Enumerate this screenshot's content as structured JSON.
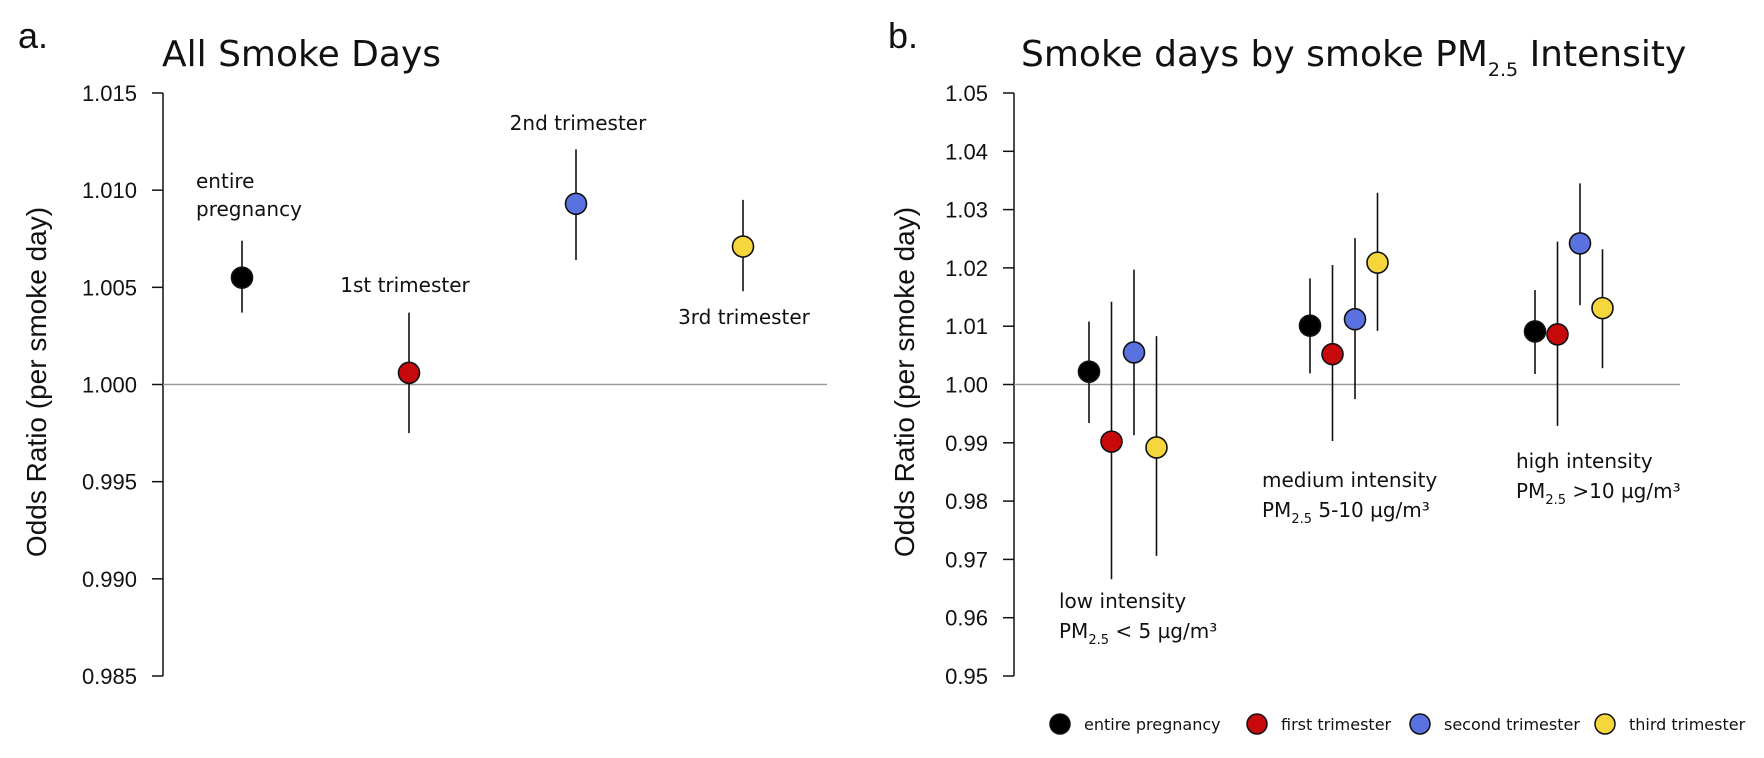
{
  "colors": {
    "entire": "#000000",
    "first": "#c8090c",
    "second": "#5a72e0",
    "third": "#f5d63c",
    "reference_line": "#9a9a9a",
    "axis": "#111111"
  },
  "panel_a": {
    "letter": "a.",
    "title": "All Smoke Days",
    "ylabel": "Odds Ratio (per smoke day)",
    "annotations": {
      "entire_1": "entire",
      "entire_2": "pregnancy",
      "first": "1st trimester",
      "second": "2nd trimester",
      "third": "3rd trimester"
    }
  },
  "panel_b": {
    "letter": "b.",
    "title_main": "Smoke days by smoke PM",
    "title_sub": "2.5",
    "title_tail": " Intensity",
    "ylabel": "Odds Ratio (per smoke day)",
    "groups": {
      "low_line1": "low intensity",
      "low_pm": "PM",
      "low_sub": "2.5",
      "low_rest": " < 5 µg/m³",
      "medium_line1": "medium intensity",
      "medium_pm": "PM",
      "medium_sub": "2.5",
      "medium_rest": " 5-10 µg/m³",
      "high_line1": "high intensity",
      "high_pm": "PM",
      "high_sub": "2.5",
      "high_rest": " >10 µg/m³"
    }
  },
  "legend": {
    "entire": "entire pregnancy",
    "first": "first trimester",
    "second": "second trimester",
    "third": "third trimester"
  },
  "chart_data": [
    {
      "type": "scatter",
      "title": "All Smoke Days",
      "ylabel": "Odds Ratio (per smoke day)",
      "ylim": [
        0.985,
        1.015
      ],
      "yticks": [
        "0.985",
        "0.990",
        "0.995",
        "1.000",
        "1.005",
        "1.010",
        "1.015"
      ],
      "reference_line": 1.0,
      "points": [
        {
          "series": "entire pregnancy",
          "label": "entire pregnancy",
          "or": 1.0055,
          "lo": 1.0037,
          "hi": 1.0074
        },
        {
          "series": "first trimester",
          "label": "1st trimester",
          "or": 1.0006,
          "lo": 0.9975,
          "hi": 1.0037
        },
        {
          "series": "second trimester",
          "label": "2nd trimester",
          "or": 1.0093,
          "lo": 1.0064,
          "hi": 1.0121
        },
        {
          "series": "third trimester",
          "label": "3rd trimester",
          "or": 1.0071,
          "lo": 1.0048,
          "hi": 1.0095
        }
      ]
    },
    {
      "type": "scatter",
      "title": "Smoke days by smoke PM2.5 Intensity",
      "ylabel": "Odds Ratio (per smoke day)",
      "ylim": [
        0.95,
        1.05
      ],
      "yticks": [
        "0.95",
        "0.96",
        "0.97",
        "0.98",
        "0.99",
        "1.00",
        "1.01",
        "1.02",
        "1.03",
        "1.04",
        "1.05"
      ],
      "reference_line": 1.0,
      "categories": [
        "low intensity",
        "medium intensity",
        "high intensity"
      ],
      "series": [
        {
          "name": "entire pregnancy",
          "or": [
            1.0022,
            1.0101,
            1.0091
          ],
          "lo": [
            0.9934,
            1.0019,
            1.0018
          ],
          "hi": [
            1.0108,
            1.0182,
            1.0162
          ]
        },
        {
          "name": "first trimester",
          "or": [
            0.9902,
            1.0052,
            1.0086
          ],
          "lo": [
            0.9666,
            0.9903,
            0.9929
          ],
          "hi": [
            1.0142,
            1.0205,
            1.0245
          ]
        },
        {
          "name": "second trimester",
          "or": [
            1.0055,
            1.0112,
            1.0242
          ],
          "lo": [
            0.9913,
            0.9975,
            1.0136
          ],
          "hi": [
            1.0197,
            1.0251,
            1.0345
          ]
        },
        {
          "name": "third trimester",
          "or": [
            0.9892,
            1.0209,
            1.0131
          ],
          "lo": [
            0.9706,
            1.0092,
            1.0028
          ],
          "hi": [
            1.0083,
            1.0329,
            1.0232
          ]
        }
      ]
    }
  ]
}
